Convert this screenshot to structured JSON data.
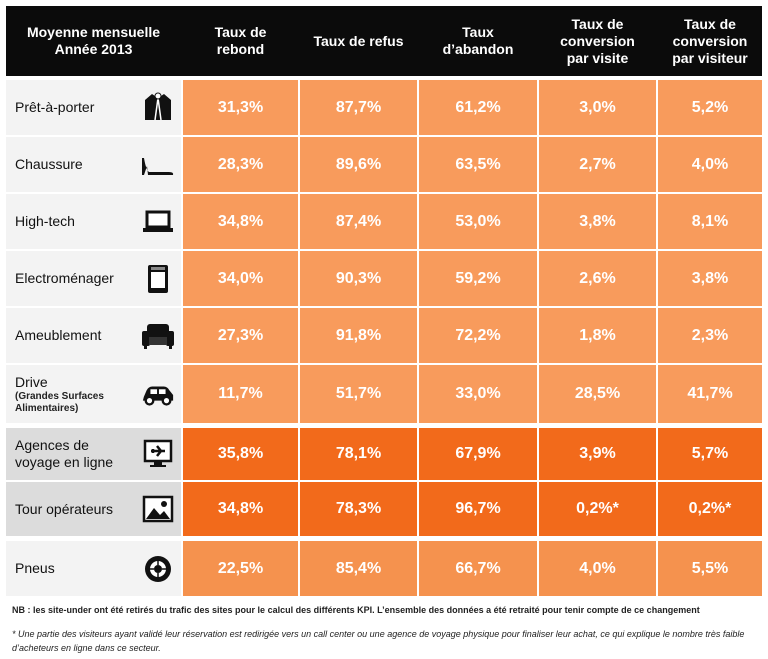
{
  "chart_data": {
    "type": "table",
    "title": "Moyenne mensuelle Année 2013",
    "columns": [
      "Taux de rebond",
      "Taux de refus",
      "Taux d’abandon",
      "Taux de conversion par visite",
      "Taux de conversion par visiteur"
    ],
    "rows": [
      {
        "label": "Prêt-à-porter",
        "sublabel": "",
        "icon": "jacket-icon",
        "values": [
          "31,3%",
          "87,7%",
          "61,2%",
          "3,0%",
          "5,2%"
        ]
      },
      {
        "label": "Chaussure",
        "sublabel": "",
        "icon": "high-heel-icon",
        "values": [
          "28,3%",
          "89,6%",
          "63,5%",
          "2,7%",
          "4,0%"
        ]
      },
      {
        "label": "High-tech",
        "sublabel": "",
        "icon": "laptop-icon",
        "values": [
          "34,8%",
          "87,4%",
          "53,0%",
          "3,8%",
          "8,1%"
        ]
      },
      {
        "label": "Electroménager",
        "sublabel": "",
        "icon": "appliance-icon",
        "values": [
          "34,0%",
          "90,3%",
          "59,2%",
          "2,6%",
          "3,8%"
        ]
      },
      {
        "label": "Ameublement",
        "sublabel": "",
        "icon": "armchair-icon",
        "values": [
          "27,3%",
          "91,8%",
          "72,2%",
          "1,8%",
          "2,3%"
        ]
      },
      {
        "label": "Drive",
        "sublabel": "(Grandes Surfaces Alimentaires)",
        "icon": "car-icon",
        "values": [
          "11,7%",
          "51,7%",
          "33,0%",
          "28,5%",
          "41,7%"
        ]
      },
      {
        "label": "Agences de voyage en ligne",
        "sublabel": "",
        "icon": "plane-screen-icon",
        "values": [
          "35,8%",
          "78,1%",
          "67,9%",
          "3,9%",
          "5,7%"
        ]
      },
      {
        "label": "Tour opérateurs",
        "sublabel": "",
        "icon": "landscape-picture-icon",
        "values": [
          "34,8%",
          "78,3%",
          "96,7%",
          "0,2%*",
          "0,2%*"
        ]
      },
      {
        "label": "Pneus",
        "sublabel": "",
        "icon": "tire-icon",
        "values": [
          "22,5%",
          "85,4%",
          "66,7%",
          "4,0%",
          "5,5%"
        ]
      }
    ]
  },
  "header": {
    "title": "Moyenne mensuelle\nAnnée 2013",
    "col1": "Taux de\nrebond",
    "col2": "Taux de refus",
    "col3": "Taux\nd’abandon",
    "col4": "Taux de\nconversion\npar visite",
    "col5": "Taux de\nconversion\npar visiteur"
  },
  "notes": {
    "nb": "NB : les site-under ont été retirés du trafic des sites pour le calcul des différents KPI. L’ensemble des données a été retraité pour tenir compte de ce changement",
    "footnote": "* Une partie des visiteurs ayant validé leur réservation est redirigée vers un call center ou une agence de voyage physique pour finaliser leur achat, ce qui explique le nombre très faible d’acheteurs en ligne dans ce secteur."
  }
}
